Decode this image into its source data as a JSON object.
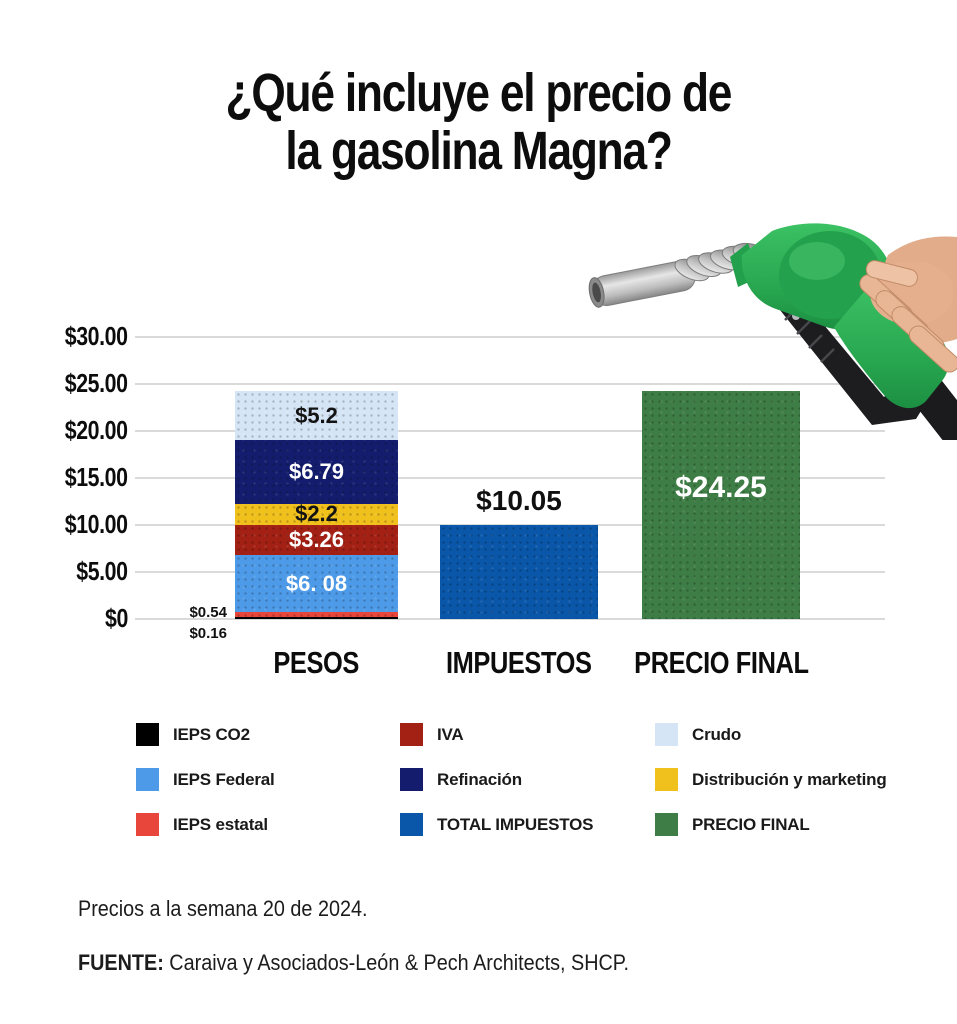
{
  "title": {
    "line1": "¿Qué incluye el precio de",
    "line2": "la gasolina Magna?"
  },
  "chart_data": {
    "type": "bar",
    "stacked": true,
    "title": "¿Qué incluye el precio de la gasolina Magna?",
    "title_lines": [
      "¿Qué incluye el precio de",
      "la gasolina Magna?"
    ],
    "currency": "MXN pesos",
    "ylim": [
      0,
      30
    ],
    "grid": true,
    "grid_color": "#dadada",
    "background_color": "#ffffff",
    "y_ticks": [
      {
        "value": 30,
        "label": "$30.00"
      },
      {
        "value": 25,
        "label": "$25.00"
      },
      {
        "value": 20,
        "label": "$20.00"
      },
      {
        "value": 15,
        "label": "$15.00"
      },
      {
        "value": 10,
        "label": "$10.00"
      },
      {
        "value": 5,
        "label": "$5.00"
      },
      {
        "value": 0,
        "label": "$0"
      }
    ],
    "bars": [
      {
        "category": "PESOS",
        "stacked": true,
        "total": 24.23,
        "segments": [
          {
            "name": "IEPS CO2",
            "value": 0.16,
            "label": "$0.16",
            "color": "#000000",
            "label_style": "outside"
          },
          {
            "name": "IEPS estatal",
            "value": 0.54,
            "label": "$0.54",
            "color": "#e8463a",
            "label_style": "outside"
          },
          {
            "name": "IEPS Federal",
            "value": 6.08,
            "label": "$6. 08",
            "color": "#4d9be8",
            "label_style": "light"
          },
          {
            "name": "IVA",
            "value": 3.26,
            "label": "$3.26",
            "color": "#a32015",
            "label_style": "light"
          },
          {
            "name": "Distribución y marketing",
            "value": 2.2,
            "label": "$2.2",
            "color": "#f0c01d",
            "label_style": "dark"
          },
          {
            "name": "Refinación",
            "value": 6.79,
            "label": "$6.79",
            "color": "#141d6d",
            "label_style": "light"
          },
          {
            "name": "Crudo",
            "value": 5.2,
            "label": "$5.2",
            "color": "#d6e5f6",
            "label_style": "dark"
          }
        ]
      },
      {
        "category": "IMPUESTOS",
        "stacked": false,
        "name": "TOTAL IMPUESTOS",
        "value": 10.05,
        "label": "$10.05",
        "color": "#0a57a9",
        "label_style": "above"
      },
      {
        "category": "PRECIO FINAL",
        "stacked": false,
        "name": "PRECIO FINAL",
        "value": 24.25,
        "label": "$24.25",
        "color": "#3e7d45",
        "label_style": "inside-light"
      }
    ],
    "legend": {
      "position": "bottom",
      "items": [
        {
          "label": "IEPS CO2",
          "color": "#000000"
        },
        {
          "label": "IEPS Federal",
          "color": "#4d9be8"
        },
        {
          "label": "IEPS estatal",
          "color": "#e8463a"
        },
        {
          "label": "IVA",
          "color": "#a32015"
        },
        {
          "label": "Refinación",
          "color": "#141d6d"
        },
        {
          "label": "TOTAL IMPUESTOS",
          "color": "#0a57a9"
        },
        {
          "label": "Crudo",
          "color": "#d6e5f6"
        },
        {
          "label": "Distribución y marketing",
          "color": "#f0c01d"
        },
        {
          "label": "PRECIO FINAL",
          "color": "#3e7d45"
        }
      ]
    }
  },
  "footer": {
    "note": "Precios a la semana 20 de 2024.",
    "source_label": "FUENTE:",
    "source_text": " Caraiva y Asociados-León & Pech Architects, SHCP."
  },
  "images": {
    "nozzle_alt": "Green gas pump nozzle held by a hand"
  }
}
